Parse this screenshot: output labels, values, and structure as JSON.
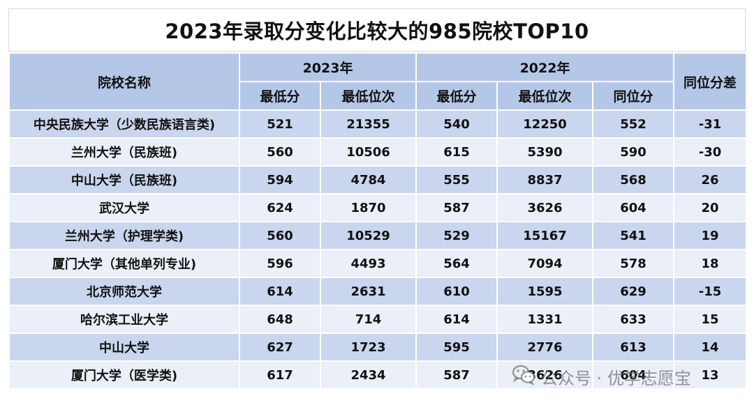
{
  "title": "2023年录取分变化比较大的985院校TOP10",
  "headers": {
    "school": "院校名称",
    "year2023": "2023年",
    "year2022": "2022年",
    "diff": "同位分差",
    "min_score": "最低分",
    "min_rank": "最低位次",
    "equiv_score": "同位分"
  },
  "rows": [
    {
      "name": "中央民族大学（少数民族语言类)",
      "s23": "521",
      "r23": "21355",
      "s22": "540",
      "r22": "12250",
      "eq": "552",
      "diff": "-31"
    },
    {
      "name": "兰州大学（民族班)",
      "s23": "560",
      "r23": "10506",
      "s22": "615",
      "r22": "5390",
      "eq": "590",
      "diff": "-30"
    },
    {
      "name": "中山大学（民族班)",
      "s23": "594",
      "r23": "4784",
      "s22": "555",
      "r22": "8837",
      "eq": "568",
      "diff": "26"
    },
    {
      "name": "武汉大学",
      "s23": "624",
      "r23": "1870",
      "s22": "587",
      "r22": "3626",
      "eq": "604",
      "diff": "20"
    },
    {
      "name": "兰州大学（护理学类)",
      "s23": "560",
      "r23": "10529",
      "s22": "529",
      "r22": "15167",
      "eq": "541",
      "diff": "19"
    },
    {
      "name": "厦门大学（其他单列专业)",
      "s23": "596",
      "r23": "4493",
      "s22": "564",
      "r22": "7094",
      "eq": "578",
      "diff": "18"
    },
    {
      "name": "北京师范大学",
      "s23": "614",
      "r23": "2631",
      "s22": "610",
      "r22": "1595",
      "eq": "629",
      "diff": "-15"
    },
    {
      "name": "哈尔滨工业大学",
      "s23": "648",
      "r23": "714",
      "s22": "614",
      "r22": "1331",
      "eq": "633",
      "diff": "15"
    },
    {
      "name": "中山大学",
      "s23": "627",
      "r23": "1723",
      "s22": "595",
      "r22": "2776",
      "eq": "613",
      "diff": "14"
    },
    {
      "name": "厦门大学（医学类)",
      "s23": "617",
      "r23": "2434",
      "s22": "587",
      "r22": "3626",
      "eq": "604",
      "diff": "13"
    }
  ],
  "watermark": {
    "text": "公众号 · 优学志愿宝",
    "icon": "wechat-icon"
  }
}
